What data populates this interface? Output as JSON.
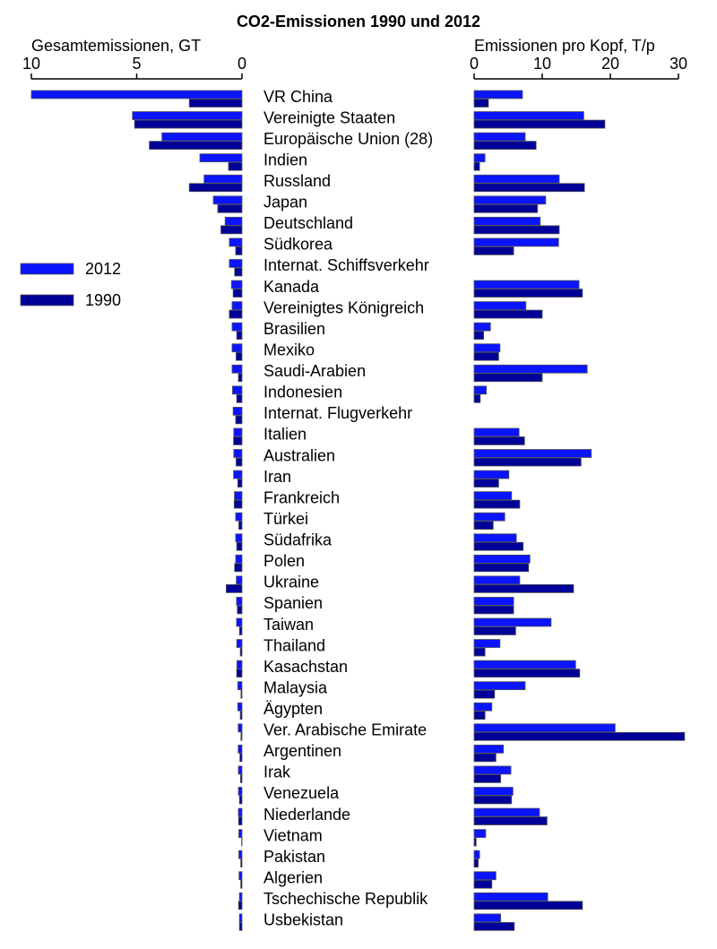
{
  "chart_data": {
    "type": "bar",
    "orientation": "horizontal",
    "title": "CO2-Emissionen 1990 und 2012",
    "xlabel": "Gesamtemissionen, GT",
    "xlim": [
      10,
      0
    ],
    "xticks": [
      10,
      5,
      0
    ],
    "x2label": "Emissionen pro Kopf, T/p",
    "x2lim": [
      0,
      30
    ],
    "x2ticks": [
      0,
      10,
      20,
      30
    ],
    "categories": [
      "VR China",
      "Vereinigte Staaten",
      "Europäische Union (28)",
      "Indien",
      "Russland",
      "Japan",
      "Deutschland",
      "Südkorea",
      "Internat. Schiffsverkehr",
      "Kanada",
      "Vereinigtes Königreich",
      "Brasilien",
      "Mexiko",
      "Saudi-Arabien",
      "Indonesien",
      "Internat. Flugverkehr",
      "Italien",
      "Australien",
      "Iran",
      "Frankreich",
      "Türkei",
      "Südafrika",
      "Polen",
      "Ukraine",
      "Spanien",
      "Taiwan",
      "Thailand",
      "Kasachstan",
      "Malaysia",
      "Ägypten",
      "Ver. Arabische Emirate",
      "Argentinen",
      "Irak",
      "Venezuela",
      "Niederlande",
      "Vietnam",
      "Pakistan",
      "Algerien",
      "Tschechische Republik",
      "Usbekistan"
    ],
    "series": [
      {
        "name": "2012",
        "color": "#0a14ff",
        "values": [
          10.0,
          5.2,
          3.8,
          2.0,
          1.8,
          1.36,
          0.8,
          0.6,
          0.6,
          0.5,
          0.47,
          0.47,
          0.47,
          0.47,
          0.45,
          0.42,
          0.39,
          0.39,
          0.4,
          0.36,
          0.3,
          0.3,
          0.3,
          0.27,
          0.26,
          0.26,
          0.25,
          0.24,
          0.2,
          0.2,
          0.18,
          0.18,
          0.17,
          0.17,
          0.17,
          0.15,
          0.15,
          0.14,
          0.12,
          0.12
        ],
        "values2": [
          7.1,
          16.1,
          7.5,
          1.6,
          12.5,
          10.5,
          9.7,
          12.4,
          null,
          15.4,
          7.6,
          2.4,
          3.8,
          16.6,
          1.8,
          null,
          6.6,
          17.2,
          5.1,
          5.5,
          4.5,
          6.2,
          8.2,
          6.7,
          5.8,
          11.3,
          3.8,
          14.9,
          7.5,
          2.6,
          20.7,
          4.3,
          5.4,
          5.7,
          9.6,
          1.7,
          0.8,
          3.2,
          10.8,
          3.9
        ]
      },
      {
        "name": "1990",
        "color": "#000099",
        "values": [
          2.5,
          5.1,
          4.4,
          0.64,
          2.5,
          1.15,
          1.0,
          0.3,
          0.35,
          0.42,
          0.6,
          0.25,
          0.28,
          0.17,
          0.25,
          0.3,
          0.4,
          0.28,
          0.2,
          0.37,
          0.15,
          0.25,
          0.35,
          0.75,
          0.22,
          0.12,
          0.08,
          0.25,
          0.05,
          0.08,
          0.05,
          0.1,
          0.07,
          0.12,
          0.16,
          0.02,
          0.06,
          0.06,
          0.16,
          0.12
        ],
        "values2": [
          2.1,
          19.2,
          9.1,
          0.8,
          16.2,
          9.3,
          12.5,
          5.8,
          null,
          15.9,
          10.0,
          1.4,
          3.6,
          10.0,
          0.9,
          null,
          7.4,
          15.7,
          3.6,
          6.7,
          2.8,
          7.2,
          8.0,
          14.6,
          5.8,
          6.1,
          1.6,
          15.5,
          3.0,
          1.6,
          30.9,
          3.2,
          3.9,
          5.5,
          10.7,
          0.3,
          0.6,
          2.6,
          15.9,
          5.9
        ]
      }
    ]
  }
}
